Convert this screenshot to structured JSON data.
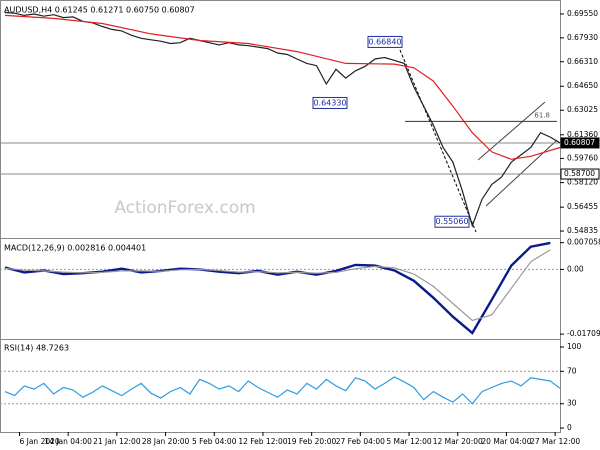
{
  "chart_data": [
    {
      "type": "line",
      "title": "AUDUSD,H4  0.61245 0.61271 0.60750 0.60807",
      "watermark": "ActionForex.com",
      "xlim": [
        -1,
        114
      ],
      "ylim": [
        0.545,
        0.7036
      ],
      "yticks": [
        {
          "value": 0.6955,
          "label": "0.69550"
        },
        {
          "value": 0.6793,
          "label": "0.67930"
        },
        {
          "value": 0.6631,
          "label": "0.66310"
        },
        {
          "value": 0.6465,
          "label": "0.64650"
        },
        0.63025,
        {
          "value": 0.6136,
          "label": "0.61360"
        },
        {
          "value": 0.5976,
          "label": "0.59760"
        },
        {
          "value": 0.5812,
          "label": "0.58120"
        },
        0.56455,
        0.54835
      ],
      "series": [
        {
          "name": "AUDUSD",
          "color": "#202020",
          "x": [
            0,
            2,
            4,
            6,
            8,
            10,
            12,
            14,
            16,
            18,
            20,
            22,
            24,
            26,
            28,
            30,
            32,
            34,
            36,
            38,
            40,
            42,
            44,
            46,
            48,
            50,
            52,
            54,
            56,
            58,
            60,
            62,
            64,
            66,
            68,
            70,
            72,
            74,
            76,
            78,
            80,
            82,
            84,
            86,
            88,
            90,
            92,
            94,
            96,
            98,
            100,
            102,
            104,
            106,
            108,
            110,
            112,
            114
          ],
          "values": [
            0.6965,
            0.696,
            0.6945,
            0.6955,
            0.694,
            0.695,
            0.693,
            0.6935,
            0.6905,
            0.6895,
            0.687,
            0.685,
            0.684,
            0.681,
            0.679,
            0.678,
            0.677,
            0.6755,
            0.676,
            0.679,
            0.6775,
            0.676,
            0.6745,
            0.676,
            0.6745,
            0.674,
            0.673,
            0.672,
            0.669,
            0.668,
            0.665,
            0.662,
            0.6605,
            0.648,
            0.658,
            0.652,
            0.657,
            0.66,
            0.665,
            0.666,
            0.664,
            0.662,
            0.646,
            0.633,
            0.62,
            0.605,
            0.595,
            0.575,
            0.552,
            0.57,
            0.58,
            0.585,
            0.595,
            0.6,
            0.605,
            0.615,
            0.612,
            0.6081
          ]
        },
        {
          "name": "MA",
          "color": "#e02020",
          "x": [
            0,
            10,
            20,
            30,
            40,
            50,
            60,
            70,
            80,
            84,
            88,
            92,
            96,
            100,
            104,
            108,
            114
          ],
          "values": [
            0.6945,
            0.6925,
            0.689,
            0.682,
            0.6775,
            0.6755,
            0.67,
            0.662,
            0.6615,
            0.659,
            0.65,
            0.633,
            0.615,
            0.602,
            0.597,
            0.599,
            0.605
          ]
        }
      ],
      "annotations": [
        {
          "value": 0.6684,
          "label": "0.66840"
        },
        {
          "value": 0.6433,
          "label": "0.64330"
        },
        {
          "value": 0.5506,
          "label": "0.55060"
        }
      ],
      "price_lines": [
        {
          "value": 0.60807,
          "label": "0.60807"
        },
        {
          "value": 0.587,
          "label": "0.58700"
        }
      ],
      "fib_level": 0.6227,
      "fib_label": "61.8"
    },
    {
      "type": "line",
      "title": "MACD(12,26,9) 0.002816 0.004401",
      "xlim": [
        -1,
        114
      ],
      "ylim": [
        -0.01812,
        0.00777
      ],
      "yticks": [
        0.007058,
        {
          "value": 0,
          "label": "0.00"
        },
        -0.01709
      ],
      "levels": [
        0
      ],
      "series": [
        {
          "name": "MACD",
          "color": "#0a1a8c",
          "x": [
            0,
            4,
            8,
            12,
            16,
            20,
            24,
            28,
            32,
            36,
            40,
            44,
            48,
            52,
            56,
            60,
            64,
            68,
            72,
            76,
            80,
            84,
            88,
            92,
            96,
            100,
            104,
            108,
            112
          ],
          "values": [
            0.0005,
            -0.0008,
            -0.0003,
            -0.0012,
            -0.001,
            -0.0006,
            0.0002,
            -0.0008,
            -0.0004,
            0.0002,
            0,
            -0.0006,
            -0.001,
            -0.0004,
            -0.0014,
            -0.0006,
            -0.0014,
            -0.0004,
            0.0012,
            0.001,
            -0.0003,
            -0.003,
            -0.0075,
            -0.0125,
            -0.0168,
            -0.008,
            0.001,
            0.006,
            0.007
          ]
        },
        {
          "name": "Signal",
          "color": "#9a9a9a",
          "x": [
            0,
            4,
            8,
            12,
            16,
            20,
            24,
            28,
            32,
            36,
            40,
            44,
            48,
            52,
            56,
            60,
            64,
            68,
            72,
            76,
            80,
            84,
            88,
            92,
            96,
            100,
            104,
            108,
            112
          ],
          "values": [
            0.0003,
            -0.0002,
            -0.0004,
            -0.0007,
            -0.0009,
            -0.0008,
            -0.0004,
            -0.0004,
            -0.0005,
            -0.0001,
            0,
            -0.0003,
            -0.0007,
            -0.0006,
            -0.0009,
            -0.0008,
            -0.001,
            -0.0008,
            0.0002,
            0.0008,
            0.0004,
            -0.0012,
            -0.0045,
            -0.009,
            -0.0135,
            -0.012,
            -0.005,
            0.002,
            0.0052
          ]
        }
      ]
    },
    {
      "type": "line",
      "title": "RSI(14) 48.7263",
      "xlim": [
        -1,
        114
      ],
      "ylim": [
        -4.9,
        108.6
      ],
      "yticks": [
        100,
        70,
        30,
        0
      ],
      "levels": [
        70,
        30
      ],
      "series": [
        {
          "name": "RSI",
          "color": "#2a9de0",
          "x": [
            0,
            2,
            4,
            6,
            8,
            10,
            12,
            14,
            16,
            18,
            20,
            22,
            24,
            26,
            28,
            30,
            32,
            34,
            36,
            38,
            40,
            42,
            44,
            46,
            48,
            50,
            52,
            54,
            56,
            58,
            60,
            62,
            64,
            66,
            68,
            70,
            72,
            74,
            76,
            78,
            80,
            82,
            84,
            86,
            88,
            90,
            92,
            94,
            96,
            98,
            100,
            102,
            104,
            106,
            108,
            110,
            112,
            114
          ],
          "values": [
            45,
            40,
            52,
            48,
            55,
            42,
            50,
            47,
            38,
            44,
            52,
            46,
            40,
            48,
            55,
            43,
            37,
            45,
            50,
            42,
            60,
            55,
            48,
            52,
            45,
            58,
            50,
            44,
            38,
            47,
            42,
            55,
            48,
            60,
            52,
            46,
            62,
            58,
            48,
            55,
            63,
            57,
            50,
            35,
            45,
            38,
            32,
            42,
            30,
            45,
            50,
            55,
            58,
            52,
            62,
            60,
            58,
            49
          ]
        }
      ],
      "xticks": [
        {
          "value": 3,
          "label": "6 Jan 2020"
        },
        {
          "value": 13,
          "label": "14 Jan 04:00"
        },
        {
          "value": 23,
          "label": "21 Jan 12:00"
        },
        {
          "value": 33,
          "label": "28 Jan 20:00"
        },
        {
          "value": 43,
          "label": "5 Feb 04:00"
        },
        {
          "value": 53,
          "label": "12 Feb 12:00"
        },
        {
          "value": 63,
          "label": "19 Feb 20:00"
        },
        {
          "value": 73,
          "label": "27 Feb 04:00"
        },
        {
          "value": 83,
          "label": "5 Mar 12:00"
        },
        {
          "value": 93,
          "label": "12 Mar 20:00"
        },
        {
          "value": 103,
          "label": "20 Mar 04:00"
        },
        {
          "value": 113,
          "label": "27 Mar 12:00"
        }
      ]
    }
  ]
}
